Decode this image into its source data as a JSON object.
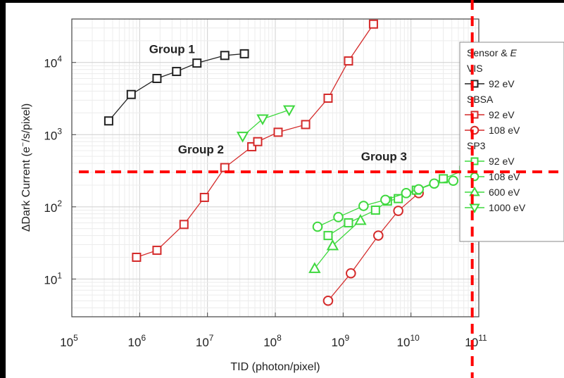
{
  "chart_data": {
    "type": "scatter",
    "xscale": "log",
    "yscale": "log",
    "xlim": [
      100000.0,
      100000000000.0
    ],
    "ylim": [
      3,
      40000.0
    ],
    "xlabel": "TID (photon/pixel)",
    "ylabel": "ΔDark Current (e⁻/s/pixel)",
    "xticks": [
      {
        "v": 100000.0,
        "base": "10",
        "exp": "5"
      },
      {
        "v": 1000000.0,
        "base": "10",
        "exp": "6"
      },
      {
        "v": 10000000.0,
        "base": "10",
        "exp": "7"
      },
      {
        "v": 100000000.0,
        "base": "10",
        "exp": "8"
      },
      {
        "v": 1000000000.0,
        "base": "10",
        "exp": "9"
      },
      {
        "v": 10000000000.0,
        "base": "10",
        "exp": "10"
      },
      {
        "v": 100000000000.0,
        "base": "10",
        "exp": "11"
      }
    ],
    "yticks": [
      {
        "v": 10.0,
        "base": "10",
        "exp": "1"
      },
      {
        "v": 100.0,
        "base": "10",
        "exp": "2"
      },
      {
        "v": 1000.0,
        "base": "10",
        "exp": "3"
      },
      {
        "v": 10000.0,
        "base": "10",
        "exp": "4"
      }
    ],
    "grid": true,
    "legend_position": "right",
    "legend_title": "Sensor & E",
    "legend_groups": [
      {
        "header": "VIS",
        "items": [
          {
            "marker": "square",
            "color": "#222222",
            "label": "92 eV"
          }
        ]
      },
      {
        "header": "SBSA",
        "items": [
          {
            "marker": "square",
            "color": "#d42a2a",
            "label": "92 eV"
          },
          {
            "marker": "circle",
            "color": "#d42a2a",
            "label": "108 eV"
          }
        ]
      },
      {
        "header": "SP3",
        "items": [
          {
            "marker": "square",
            "color": "#3ed83e",
            "label": "92 eV"
          },
          {
            "marker": "circle",
            "color": "#3ed83e",
            "label": "108 eV"
          },
          {
            "marker": "triangle",
            "color": "#3ed83e",
            "label": "600 eV"
          },
          {
            "marker": "triangle-down",
            "color": "#3ed83e",
            "label": "1000 eV"
          }
        ]
      }
    ],
    "annotations": [
      {
        "text": "Group 1",
        "x": 3000000.0,
        "y": 13500.0
      },
      {
        "text": "Group 2",
        "x": 8000000.0,
        "y": 550
      },
      {
        "text": "Group 3",
        "x": 4000000000.0,
        "y": 440
      }
    ],
    "series": [
      {
        "sensor": "VIS",
        "energy": "92 eV",
        "color": "#222222",
        "marker": "square",
        "x": [
          350000.0,
          750000.0,
          1800000.0,
          3500000.0,
          7000000.0,
          18000000.0,
          35000000.0
        ],
        "y": [
          1550,
          3600,
          6000,
          7500,
          9800,
          12500,
          13200
        ]
      },
      {
        "sensor": "SBSA",
        "energy": "92 eV",
        "color": "#d42a2a",
        "marker": "square",
        "x": [
          900000.0,
          1800000.0,
          4500000.0,
          9000000.0,
          18000000.0,
          45000000.0,
          55000000.0,
          110000000.0,
          280000000.0,
          600000000.0,
          1200000000.0,
          2800000000.0
        ],
        "y": [
          20,
          25,
          57,
          135,
          350,
          680,
          800,
          1080,
          1380,
          3200,
          10500,
          34000
        ]
      },
      {
        "sensor": "SBSA",
        "energy": "108 eV",
        "color": "#d42a2a",
        "marker": "circle",
        "x": [
          600000000.0,
          1300000000.0,
          3300000000.0,
          6500000000.0,
          13000000000.0
        ],
        "y": [
          5,
          12,
          40,
          88,
          155
        ]
      },
      {
        "sensor": "SP3",
        "energy": "92 eV",
        "color": "#3ed83e",
        "marker": "square",
        "x": [
          600000000.0,
          1200000000.0,
          3000000000.0,
          4500000000.0,
          6500000000.0,
          12000000000.0,
          30000000000.0,
          60000000000.0
        ],
        "y": [
          40,
          60,
          90,
          120,
          130,
          170,
          245,
          320
        ]
      },
      {
        "sensor": "SP3",
        "energy": "108 eV",
        "color": "#3ed83e",
        "marker": "circle",
        "x": [
          420000000.0,
          850000000.0,
          2000000000.0,
          4200000000.0,
          8500000000.0,
          13000000000.0,
          22000000000.0,
          42000000000.0
        ],
        "y": [
          53,
          72,
          103,
          125,
          155,
          175,
          210,
          230
        ]
      },
      {
        "sensor": "SP3",
        "energy": "600 eV",
        "color": "#3ed83e",
        "marker": "triangle",
        "x": [
          380000000.0,
          700000000.0,
          1800000000.0
        ],
        "y": [
          14,
          29,
          65
        ]
      },
      {
        "sensor": "SP3",
        "energy": "1000 eV",
        "color": "#3ed83e",
        "marker": "triangle-down",
        "x": [
          33000000.0,
          65000000.0,
          160000000.0
        ],
        "y": [
          950,
          1650,
          2200
        ]
      }
    ],
    "reference_lines": [
      {
        "orientation": "vertical",
        "x": 80000000000.0,
        "color": "#ff0000",
        "style": "dashed"
      },
      {
        "orientation": "horizontal",
        "y": 305,
        "color": "#ff0000",
        "style": "dashed"
      }
    ]
  }
}
